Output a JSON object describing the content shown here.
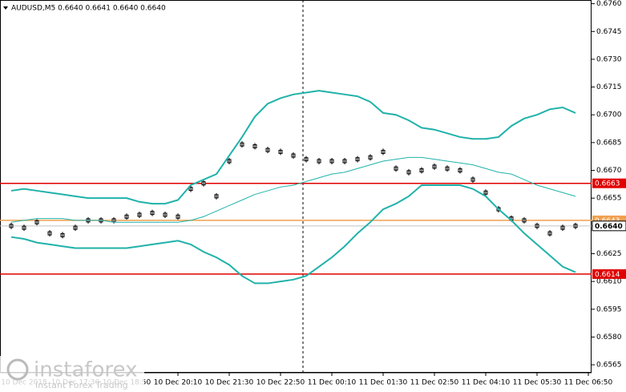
{
  "chart_data": {
    "type": "line",
    "title": "AUDUSD,M5  0.6640 0.6641 0.6640 0.6640",
    "categories": [
      null,
      "10 Dec 2018",
      null,
      null,
      null,
      "10 Dec 17:30",
      null,
      null,
      null,
      "10 Dec 18:50",
      null,
      null,
      null,
      "10 Dec 20:10",
      null,
      null,
      null,
      "10 Dec 21:30",
      null,
      null,
      null,
      "10 Dec 22:50",
      null,
      null,
      null,
      "11 Dec 00:10",
      null,
      null,
      null,
      "11 Dec 01:30",
      null,
      null,
      null,
      "11 Dec 02:50",
      null,
      null,
      null,
      "11 Dec 04:10",
      null,
      null,
      null,
      "11 Dec 05:30",
      null,
      null,
      null,
      "11 Dec 06:50"
    ],
    "series": [
      {
        "name": "AUDUSD",
        "color": "#000000",
        "values": [
          0.664,
          0.6639,
          0.6642,
          0.6636,
          0.6635,
          0.6639,
          0.6643,
          0.6643,
          0.6643,
          0.6645,
          0.6646,
          0.6647,
          0.6646,
          0.6645,
          0.666,
          0.6663,
          0.6656,
          0.6675,
          0.6684,
          0.6683,
          0.6681,
          0.668,
          0.6678,
          0.6676,
          0.6675,
          0.6675,
          0.6675,
          0.6676,
          0.6677,
          0.668,
          0.6671,
          0.6669,
          0.667,
          0.6672,
          0.6671,
          0.667,
          0.6665,
          0.6658,
          0.6649,
          0.6644,
          0.6643,
          0.664,
          0.6636,
          0.6639,
          0.664,
          null
        ]
      },
      {
        "name": "Upper band",
        "color": "#20b2aa",
        "values": [
          0.6659,
          0.666,
          0.6659,
          0.6658,
          0.6657,
          0.6656,
          0.6655,
          0.6655,
          0.6655,
          0.6655,
          0.6653,
          0.6652,
          0.6652,
          0.6654,
          0.6662,
          0.6665,
          0.6668,
          0.6678,
          0.6688,
          0.6699,
          0.6706,
          0.6709,
          0.6711,
          0.6712,
          0.6713,
          0.6712,
          0.6711,
          0.671,
          0.6707,
          0.6701,
          0.67,
          0.6697,
          0.6693,
          0.6692,
          0.669,
          0.6688,
          0.6687,
          0.6687,
          0.6688,
          0.6694,
          0.6698,
          0.67,
          0.6703,
          0.6704,
          0.6701,
          null
        ]
      },
      {
        "name": "Middle band",
        "color": "#20b2aa",
        "values": [
          0.6642,
          0.6643,
          0.6644,
          0.6644,
          0.6644,
          0.6643,
          0.6643,
          0.6643,
          0.6642,
          0.6642,
          0.6642,
          0.6642,
          0.6642,
          0.6642,
          0.6643,
          0.6645,
          0.6648,
          0.6651,
          0.6654,
          0.6657,
          0.6659,
          0.6661,
          0.6662,
          0.6664,
          0.6666,
          0.6668,
          0.6669,
          0.6671,
          0.6673,
          0.6675,
          0.6676,
          0.6677,
          0.6677,
          0.6676,
          0.6675,
          0.6674,
          0.6673,
          0.6671,
          0.6669,
          0.6668,
          0.6665,
          0.6662,
          0.666,
          0.6658,
          0.6656,
          null
        ]
      },
      {
        "name": "Lower band",
        "color": "#20b2aa",
        "values": [
          0.6634,
          0.6633,
          0.6631,
          0.663,
          0.6629,
          0.6628,
          0.6628,
          0.6628,
          0.6628,
          0.6628,
          0.6629,
          0.663,
          0.6631,
          0.6632,
          0.663,
          0.6626,
          0.6623,
          0.6619,
          0.6613,
          0.6609,
          0.6609,
          0.661,
          0.6611,
          0.6613,
          0.6618,
          0.6623,
          0.6629,
          0.6636,
          0.6642,
          0.6649,
          0.6652,
          0.6656,
          0.6662,
          0.6662,
          0.6662,
          0.6662,
          0.666,
          0.6656,
          0.6649,
          0.6643,
          0.6636,
          0.663,
          0.6624,
          0.6618,
          0.6615,
          null
        ]
      }
    ],
    "ylim": [
      0.6562,
      0.6762
    ],
    "yticks": [
      {
        "value": 0.6565,
        "label": "0.6565"
      },
      {
        "value": 0.658,
        "label": "0.6580"
      },
      {
        "value": 0.6595,
        "label": "0.6595"
      },
      {
        "value": 0.661,
        "label": "0.6610"
      },
      {
        "value": 0.6625,
        "label": "0.6625"
      },
      {
        "value": 0.664,
        "label": "0.6640"
      },
      {
        "value": 0.6655,
        "label": "0.6655"
      },
      {
        "value": 0.667,
        "label": "0.6670"
      },
      {
        "value": 0.6685,
        "label": "0.6685"
      },
      {
        "value": 0.67,
        "label": "0.6700"
      },
      {
        "value": 0.6715,
        "label": "0.6715"
      },
      {
        "value": 0.673,
        "label": "0.6730"
      },
      {
        "value": 0.6745,
        "label": "0.6745"
      },
      {
        "value": 0.676,
        "label": "0.6760"
      }
    ],
    "levels": [
      {
        "value": 0.6663,
        "label": "0.6663",
        "color": "#e00000"
      },
      {
        "value": 0.6614,
        "label": "0.6614",
        "color": "#e00000"
      },
      {
        "value": 0.6643,
        "label": "0.6643",
        "color": "#f0a050"
      },
      {
        "value": 0.664,
        "label": "0.6640",
        "color": "#000000"
      }
    ]
  },
  "watermark": {
    "brand": "instaforex",
    "tagline": "Instant Forex Trading"
  }
}
